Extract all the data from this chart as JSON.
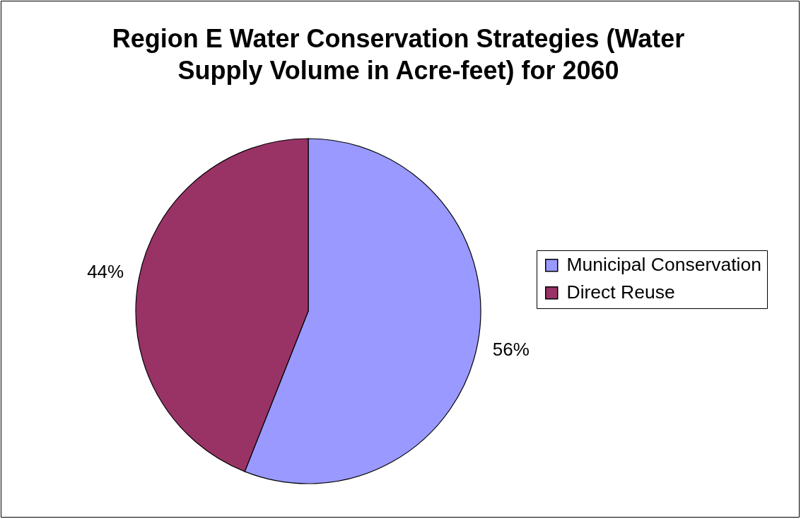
{
  "chart_data": {
    "type": "pie",
    "title": "Region E Water Conservation Strategies (Water Supply Volume in Acre-feet) for 2060",
    "categories": [
      "Municipal Conservation",
      "Direct Reuse"
    ],
    "values": [
      56,
      44
    ],
    "colors": [
      "#9999ff",
      "#993366"
    ],
    "value_labels": [
      "56%",
      "44%"
    ],
    "legend": "right"
  }
}
